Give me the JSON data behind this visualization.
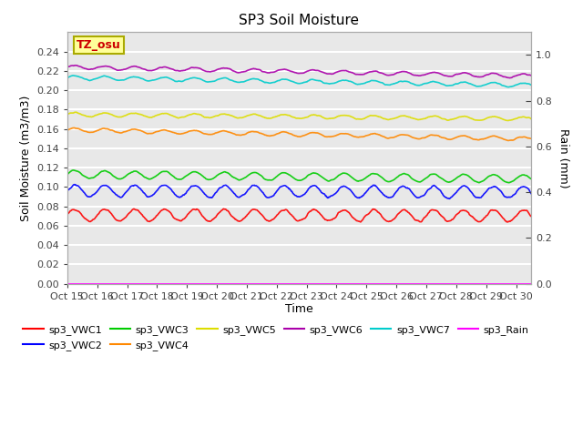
{
  "title": "SP3 Soil Moisture",
  "xlabel": "Time",
  "ylabel_left": "Soil Moisture (m3/m3)",
  "ylabel_right": "Rain (mm)",
  "ylim_left": [
    0.0,
    0.26
  ],
  "ylim_right": [
    0.0,
    1.1
  ],
  "xtick_labels": [
    "Oct 15",
    "Oct 16",
    "Oct 17",
    "Oct 18",
    "Oct 19",
    "Oct 20",
    "Oct 21",
    "Oct 22",
    "Oct 23",
    "Oct 24",
    "Oct 25",
    "Oct 26",
    "Oct 27",
    "Oct 28",
    "Oct 29",
    "Oct 30"
  ],
  "annotation_text": "TZ_osu",
  "annotation_color": "#cc0000",
  "annotation_bg": "#ffff99",
  "annotation_border": "#aaaa00",
  "series": {
    "sp3_VWC1": {
      "color": "#ff0000",
      "base": 0.071,
      "amp": 0.006,
      "freq": 1.0,
      "trend": -5e-05,
      "noise_scale": 0.001
    },
    "sp3_VWC2": {
      "color": "#0000ff",
      "base": 0.096,
      "amp": 0.006,
      "freq": 1.0,
      "trend": -0.0001,
      "noise_scale": 0.001
    },
    "sp3_VWC3": {
      "color": "#00cc00",
      "base": 0.113,
      "amp": 0.004,
      "freq": 1.0,
      "trend": -0.0003,
      "noise_scale": 0.0005
    },
    "sp3_VWC4": {
      "color": "#ff8800",
      "base": 0.159,
      "amp": 0.002,
      "freq": 1.0,
      "trend": -0.0006,
      "noise_scale": 0.0005
    },
    "sp3_VWC5": {
      "color": "#dddd00",
      "base": 0.175,
      "amp": 0.002,
      "freq": 1.0,
      "trend": -0.0003,
      "noise_scale": 0.0005
    },
    "sp3_VWC6": {
      "color": "#aa00aa",
      "base": 0.224,
      "amp": 0.002,
      "freq": 1.0,
      "trend": -0.0006,
      "noise_scale": 0.0005
    },
    "sp3_VWC7": {
      "color": "#00cccc",
      "base": 0.213,
      "amp": 0.002,
      "freq": 1.0,
      "trend": -0.0005,
      "noise_scale": 0.0005
    },
    "sp3_Rain": {
      "color": "#ff00ff",
      "base": 0.0,
      "amp": 0.0,
      "freq": 0,
      "trend": 0.0,
      "noise_scale": 0.0
    }
  },
  "legend_order": [
    "sp3_VWC1",
    "sp3_VWC2",
    "sp3_VWC3",
    "sp3_VWC4",
    "sp3_VWC5",
    "sp3_VWC6",
    "sp3_VWC7",
    "sp3_Rain"
  ],
  "legend_ncols": 6,
  "bg_color": "#e8e8e8",
  "grid_color": "#ffffff",
  "right_yticks": [
    0.0,
    0.2,
    0.4,
    0.6,
    0.8,
    1.0
  ],
  "left_yticks": [
    0.0,
    0.02,
    0.04,
    0.06,
    0.08,
    0.1,
    0.12,
    0.14,
    0.16,
    0.18,
    0.2,
    0.22,
    0.24
  ]
}
